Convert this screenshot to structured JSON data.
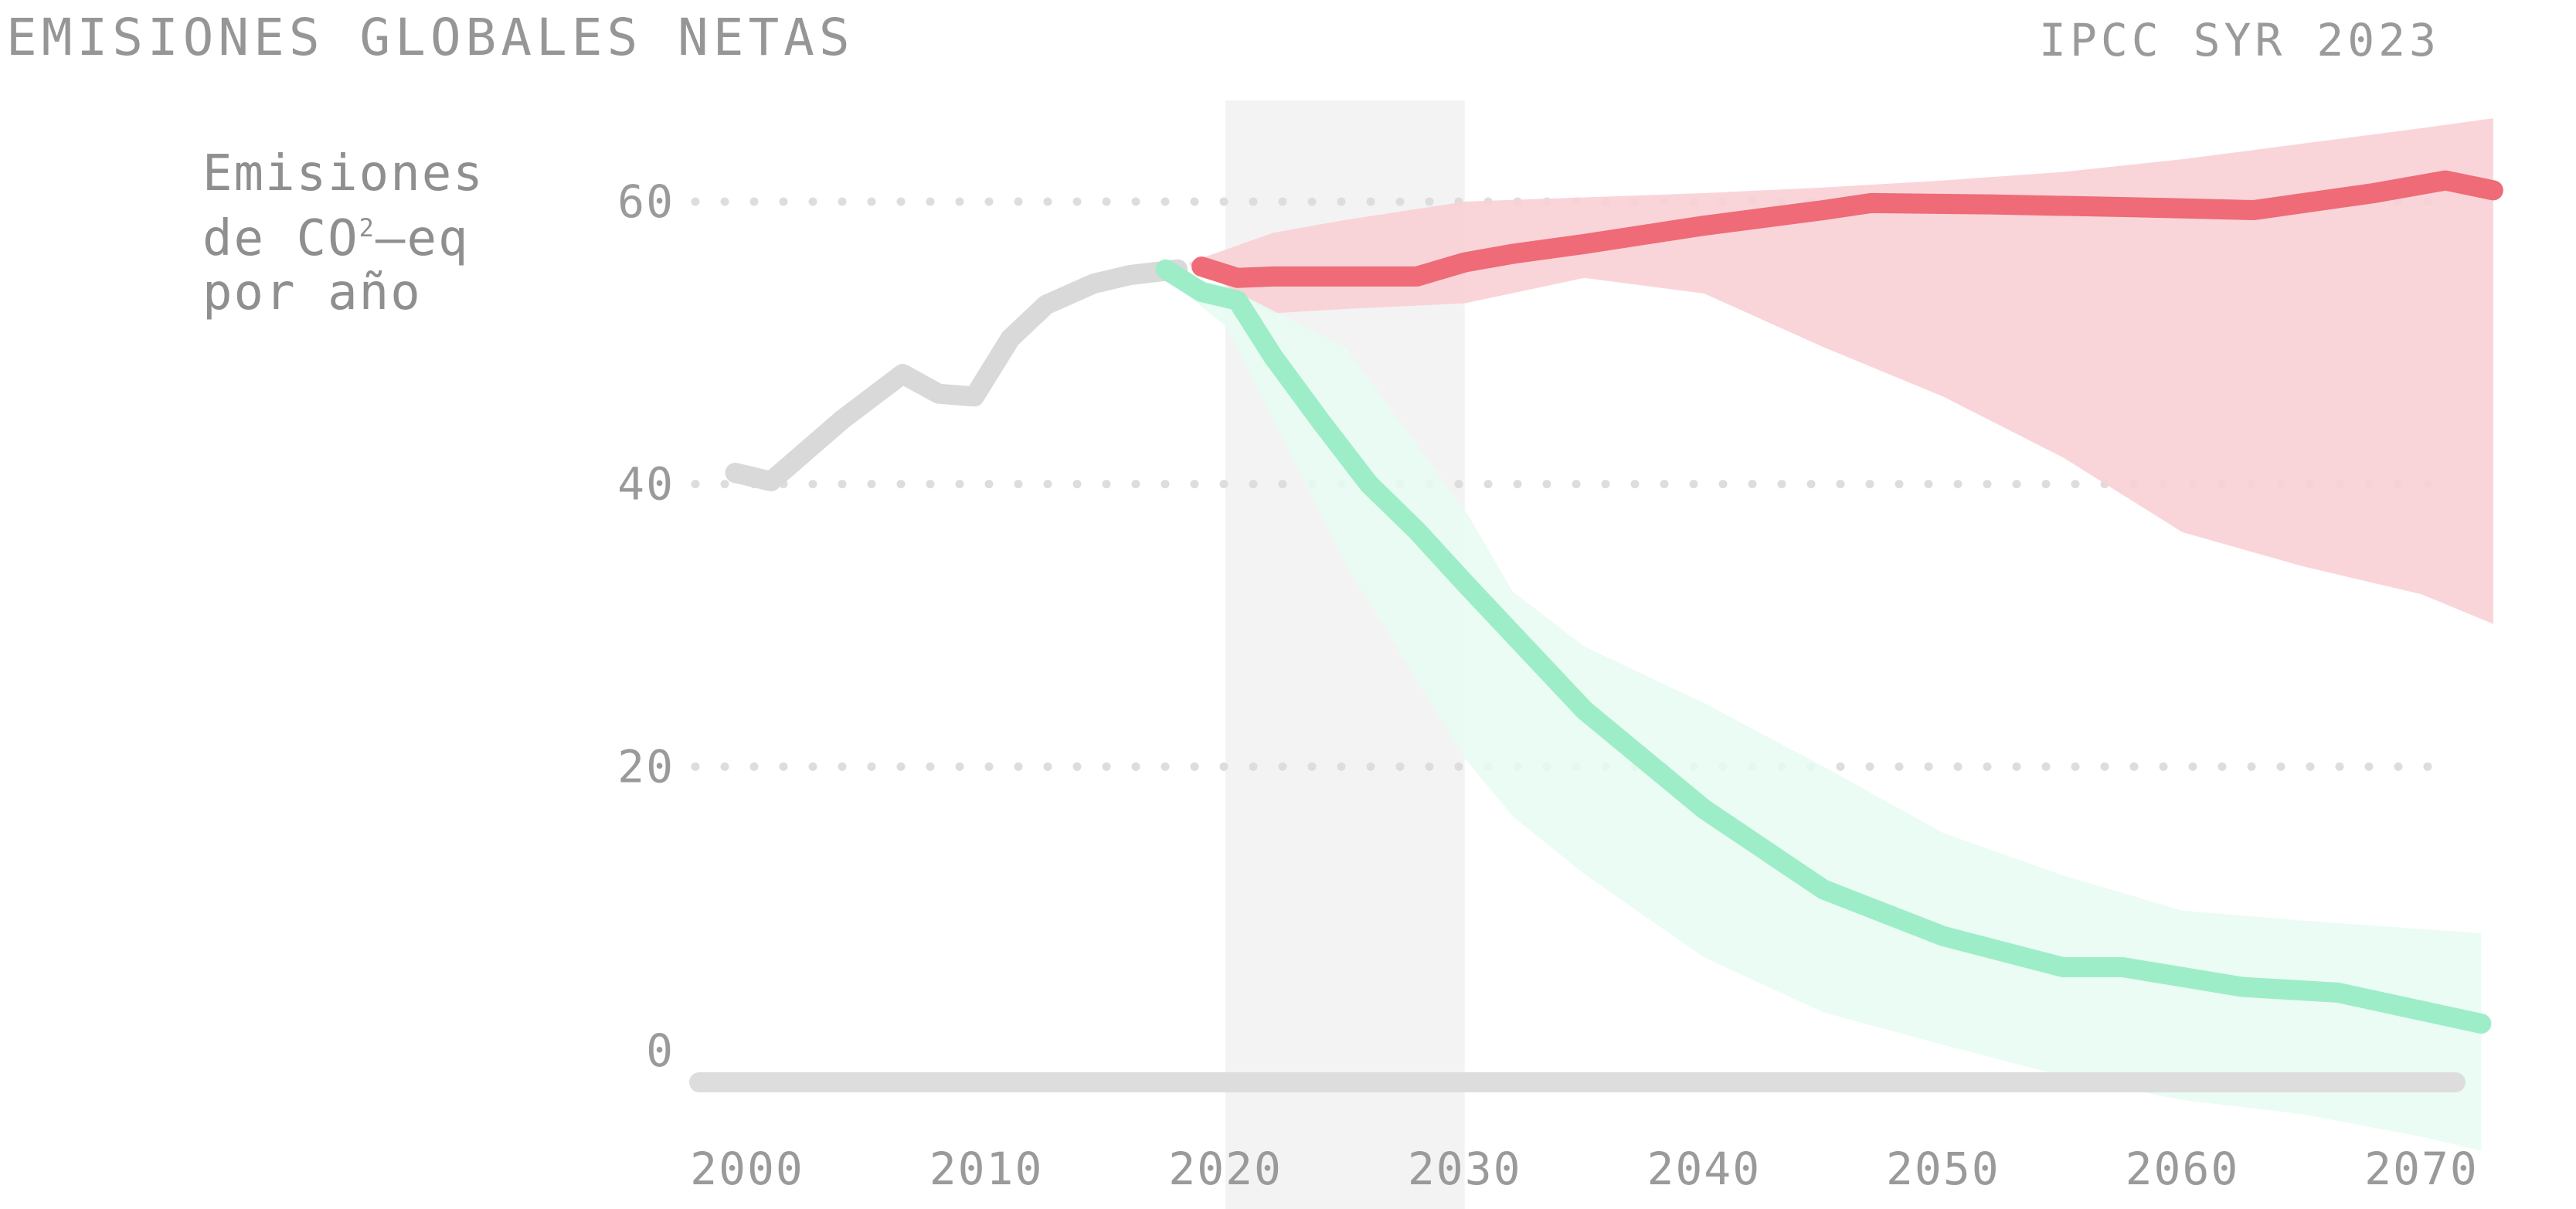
{
  "header": {
    "title": "EMISIONES GLOBALES NETAS",
    "source": "IPCC SYR 2023"
  },
  "chart_data": {
    "type": "line",
    "title": "EMISIONES GLOBALES NETAS",
    "ylabel_lines": [
      "Emisiones",
      "de CO",
      "2",
      "–eq",
      "por año"
    ],
    "xlim": [
      2000,
      2073
    ],
    "ylim": [
      0,
      60
    ],
    "x_ticks": [
      2000,
      2010,
      2020,
      2030,
      2040,
      2050,
      2060,
      2070
    ],
    "y_ticks": [
      0,
      20,
      40,
      60
    ],
    "grid": "horizontal dotted",
    "highlight_period": [
      2020,
      2030
    ],
    "colors": {
      "historical": "#d9d9d9",
      "current_policies": "#ee6b77",
      "current_policies_band": "#f8d0d5",
      "net_zero": "#9eedc9",
      "net_zero_band": "#e6fbf2",
      "highlight": "#f3f3f3",
      "baseline": "#dddddd",
      "grid": "#dddddd"
    },
    "series": [
      {
        "key": "historical",
        "x": [
          1999.5,
          2001,
          2004,
          2006.5,
          2008,
          2009.5,
          2011,
          2012.5,
          2014.5,
          2016,
          2018
        ],
        "y": [
          40.8,
          40.2,
          44.6,
          47.8,
          46.4,
          46.2,
          50.3,
          52.7,
          54.2,
          54.8,
          55.2
        ]
      },
      {
        "key": "current_policies",
        "x": [
          2019,
          2020.5,
          2022,
          2024,
          2026,
          2028,
          2030,
          2032,
          2035,
          2040,
          2045,
          2047,
          2052,
          2058,
          2063,
          2068,
          2071,
          2073
        ],
        "y": [
          55.4,
          54.6,
          54.7,
          54.7,
          54.7,
          54.7,
          55.7,
          56.3,
          57.0,
          58.3,
          59.4,
          59.9,
          59.8,
          59.6,
          59.4,
          60.6,
          61.5,
          60.8
        ]
      },
      {
        "key": "net_zero",
        "x": [
          2017.5,
          2019,
          2020.5,
          2022,
          2024,
          2026,
          2028,
          2030,
          2032.5,
          2035,
          2040,
          2045,
          2050,
          2055,
          2057.5,
          2062.5,
          2066.5,
          2072.5
        ],
        "y": [
          55.2,
          53.6,
          53.0,
          49.0,
          44.4,
          40.0,
          36.7,
          33.0,
          28.5,
          24.0,
          17.0,
          11.3,
          8.0,
          5.8,
          5.8,
          4.4,
          4.0,
          1.8
        ]
      }
    ],
    "bands": [
      {
        "key": "current_policies_band",
        "x": [
          2018.5,
          2022,
          2025,
          2030,
          2035,
          2040,
          2045,
          2050,
          2055,
          2060,
          2065,
          2070,
          2073
        ],
        "upper": [
          55.7,
          57.8,
          58.7,
          60.0,
          60.3,
          60.6,
          61.0,
          61.5,
          62.1,
          63.0,
          64.1,
          65.2,
          65.9
        ],
        "lower": [
          55.5,
          52.1,
          52.4,
          52.8,
          54.6,
          53.5,
          49.7,
          46.2,
          41.9,
          36.6,
          34.2,
          32.2,
          30.1
        ]
      },
      {
        "key": "net_zero_band",
        "x": [
          2017,
          2020,
          2025,
          2030,
          2032,
          2035,
          2040,
          2045,
          2050,
          2055,
          2060,
          2065,
          2070,
          2072.5
        ],
        "upper": [
          55.3,
          54.0,
          49.7,
          38.2,
          32.4,
          28.5,
          24.5,
          20.0,
          15.3,
          12.3,
          9.8,
          9.1,
          8.5,
          8.2
        ],
        "lower": [
          55.3,
          51.2,
          34.4,
          20.6,
          16.5,
          12.4,
          6.5,
          2.6,
          0.3,
          -1.9,
          -3.6,
          -4.6,
          -6.2,
          -7.2
        ]
      }
    ]
  }
}
